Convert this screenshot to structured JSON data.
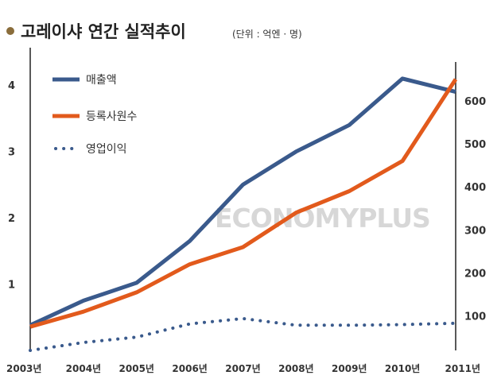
{
  "header": {
    "title": "고레이샤 연간 실적추이",
    "unit": "(단위 : 억엔 · 명)"
  },
  "watermark": "ECONOMYPLUS",
  "colors": {
    "revenue": "#3a5a8c",
    "employees": "#e25a1c",
    "operating_profit": "#3a5a8c",
    "axis": "#222222",
    "bullet": "#8a6d3b"
  },
  "legend": [
    {
      "label": "매출액",
      "style": "solid",
      "series": "revenue"
    },
    {
      "label": "등록사원수",
      "style": "solid",
      "series": "employees"
    },
    {
      "label": "영업이익",
      "style": "dotted",
      "series": "operating_profit"
    }
  ],
  "chart_data": {
    "type": "line",
    "x": [
      "2003년",
      "2004년",
      "2005년",
      "2006년",
      "2007년",
      "2008년",
      "2009년",
      "2010년",
      "2011년"
    ],
    "left_axis": {
      "ticks": [
        "1",
        "2",
        "3",
        "4"
      ],
      "range": [
        0,
        4.35
      ]
    },
    "right_axis": {
      "ticks": [
        "100",
        "200",
        "300",
        "400",
        "500",
        "600"
      ],
      "range": [
        20,
        690
      ]
    },
    "series": [
      {
        "name": "매출액",
        "key": "revenue",
        "axis": "left",
        "values": [
          0.38,
          0.75,
          1.02,
          1.65,
          2.5,
          3.0,
          3.4,
          4.1,
          3.9
        ]
      },
      {
        "name": "영업이익",
        "key": "operating_profit",
        "axis": "left",
        "values": [
          0.0,
          0.12,
          0.2,
          0.4,
          0.48,
          0.38,
          0.38,
          0.39,
          0.41
        ]
      },
      {
        "name": "등록사원수",
        "key": "employees",
        "axis": "right",
        "values": [
          75,
          110,
          155,
          220,
          260,
          340,
          390,
          460,
          650
        ]
      }
    ],
    "grid": false,
    "legend_position": "top-left"
  }
}
